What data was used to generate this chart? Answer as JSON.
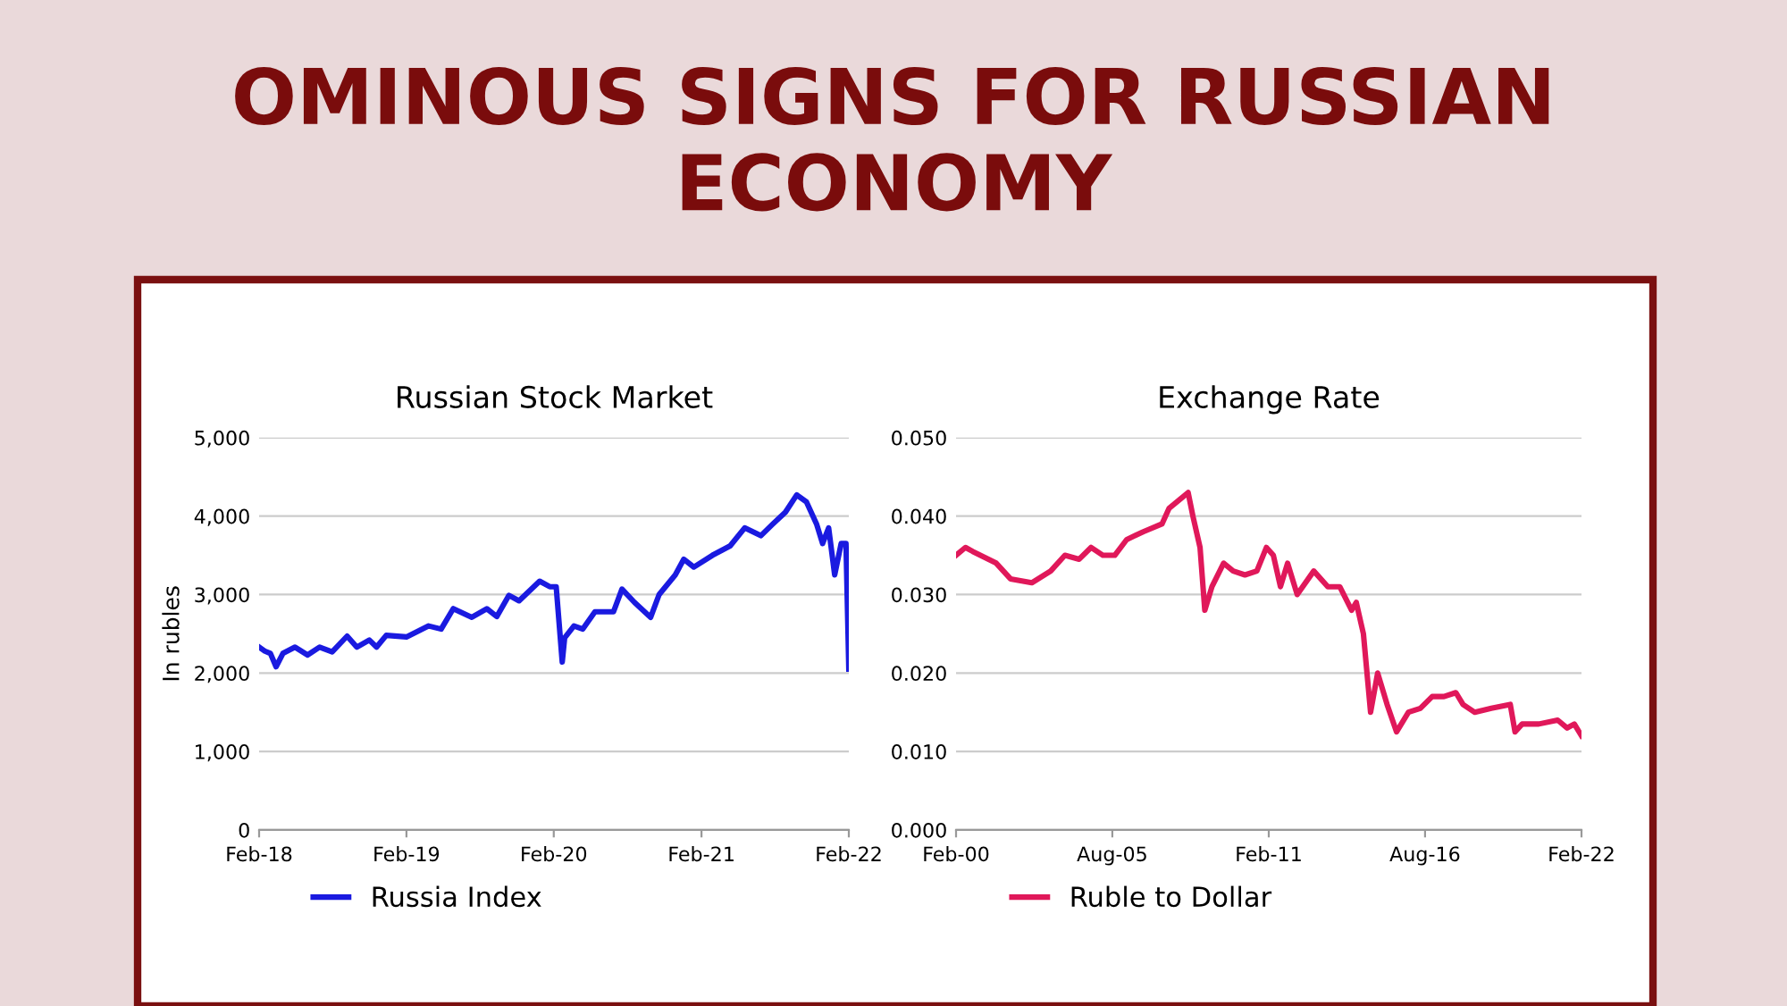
{
  "chart_data": [
    {
      "type": "other",
      "title": "OMINOUS SIGNS FOR RUSSIAN ECONOMY"
    },
    {
      "type": "line",
      "title": "Russian Stock Market",
      "ylabel": "In rubles",
      "grid": "y",
      "legend": "bottom",
      "xlim": [
        "2018-02",
        "2022-02"
      ],
      "xticks": [
        {
          "value": "2018-02",
          "label": "Feb-18"
        },
        {
          "value": "2019-02",
          "label": "Feb-19"
        },
        {
          "value": "2020-02",
          "label": "Feb-20"
        },
        {
          "value": "2021-02",
          "label": "Feb-21"
        },
        {
          "value": "2022-02",
          "label": "Feb-22"
        }
      ],
      "ylim": [
        0,
        5000
      ],
      "yticks": [
        0,
        {
          "value": 1000,
          "label": "1,000"
        },
        {
          "value": 2000,
          "label": "2,000"
        },
        {
          "value": 3000,
          "label": "3,000"
        },
        {
          "value": 4000,
          "label": "4,000"
        },
        {
          "value": 5000,
          "label": "5,000"
        }
      ],
      "series": [
        {
          "name": "Russia Index",
          "color": "#1a1ae0",
          "x": [
            "2018-02-01",
            "2018-02-15",
            "2018-03-01",
            "2018-03-15",
            "2018-04-01",
            "2018-05-01",
            "2018-06-01",
            "2018-07-01",
            "2018-08-01",
            "2018-09-07",
            "2018-10-01",
            "2018-11-01",
            "2018-11-19",
            "2018-12-13",
            "2019-02-01",
            "2019-03-28",
            "2019-04-28",
            "2019-05-28",
            "2019-07-13",
            "2019-08-19",
            "2019-09-13",
            "2019-10-13",
            "2019-11-07",
            "2019-12-28",
            "2020-01-22",
            "2020-02-07",
            "2020-02-22",
            "2020-02-28",
            "2020-03-22",
            "2020-04-13",
            "2020-05-13",
            "2020-06-28",
            "2020-07-19",
            "2020-08-19",
            "2020-09-28",
            "2020-10-19",
            "2020-11-28",
            "2020-12-19",
            "2021-01-13",
            "2021-02-28",
            "2021-04-13",
            "2021-05-19",
            "2021-06-28",
            "2021-07-28",
            "2021-08-28",
            "2021-09-25",
            "2021-10-19",
            "2021-11-13",
            "2021-11-28",
            "2021-12-13",
            "2021-12-28",
            "2022-01-13",
            "2022-01-25",
            "2022-02-01"
          ],
          "values": [
            2330,
            2280,
            2250,
            2080,
            2250,
            2330,
            2230,
            2330,
            2270,
            2470,
            2330,
            2420,
            2330,
            2480,
            2460,
            2600,
            2560,
            2820,
            2710,
            2820,
            2720,
            2990,
            2920,
            3170,
            3100,
            3100,
            2140,
            2450,
            2600,
            2560,
            2780,
            2780,
            3070,
            2900,
            2710,
            3000,
            3250,
            3450,
            3350,
            3500,
            3620,
            3850,
            3750,
            3900,
            4050,
            4270,
            4180,
            3900,
            3650,
            3850,
            3250,
            3650,
            3650,
            2050
          ]
        }
      ]
    },
    {
      "type": "line",
      "title": "Exchange Rate",
      "grid": "y",
      "legend": "bottom",
      "xlim": [
        "2000-02",
        "2022-02"
      ],
      "xticks": [
        {
          "value": "2000-02",
          "label": "Feb-00"
        },
        {
          "value": "2005-08",
          "label": "Aug-05"
        },
        {
          "value": "2011-02",
          "label": "Feb-11"
        },
        {
          "value": "2016-08",
          "label": "Aug-16"
        },
        {
          "value": "2022-02",
          "label": "Feb-22"
        }
      ],
      "ylim": [
        0,
        0.05
      ],
      "yticks": [
        {
          "value": 0,
          "label": "0.000"
        },
        {
          "value": 0.01,
          "label": "0.010"
        },
        {
          "value": 0.02,
          "label": "0.020"
        },
        {
          "value": 0.03,
          "label": "0.030"
        },
        {
          "value": 0.04,
          "label": "0.040"
        },
        {
          "value": 0.05,
          "label": "0.050"
        }
      ],
      "series": [
        {
          "name": "Ruble to Dollar",
          "color": "#e0185a",
          "x": [
            "2000-02",
            "2000-06",
            "2000-09",
            "2001-07",
            "2002-01",
            "2002-10",
            "2003-06",
            "2003-12",
            "2004-06",
            "2004-11",
            "2005-04",
            "2005-09",
            "2006-02",
            "2006-09",
            "2007-05",
            "2007-08",
            "2007-12",
            "2008-04",
            "2008-06",
            "2008-09",
            "2008-11",
            "2009-02",
            "2009-07",
            "2009-11",
            "2010-04",
            "2010-09",
            "2011-01",
            "2011-04",
            "2011-07",
            "2011-10",
            "2012-02",
            "2012-09",
            "2013-03",
            "2013-08",
            "2014-01",
            "2014-03",
            "2014-06",
            "2014-09",
            "2014-12",
            "2015-04",
            "2015-08",
            "2016-01",
            "2016-06",
            "2016-11",
            "2017-04",
            "2017-09",
            "2017-12",
            "2018-05",
            "2018-12",
            "2019-08",
            "2019-10",
            "2020-01",
            "2020-08",
            "2021-04",
            "2021-08",
            "2021-11",
            "2022-02"
          ],
          "values": [
            0.035,
            0.036,
            0.0355,
            0.034,
            0.032,
            0.0315,
            0.033,
            0.035,
            0.0345,
            0.036,
            0.035,
            0.035,
            0.037,
            0.038,
            0.039,
            0.041,
            0.042,
            0.043,
            0.04,
            0.036,
            0.028,
            0.031,
            0.034,
            0.033,
            0.0325,
            0.033,
            0.036,
            0.035,
            0.031,
            0.034,
            0.03,
            0.033,
            0.031,
            0.031,
            0.028,
            0.029,
            0.025,
            0.015,
            0.02,
            0.016,
            0.0125,
            0.015,
            0.0155,
            0.017,
            0.017,
            0.0175,
            0.016,
            0.015,
            0.0155,
            0.016,
            0.0125,
            0.0135,
            0.0135,
            0.014,
            0.013,
            0.0135,
            0.012
          ]
        }
      ]
    }
  ]
}
